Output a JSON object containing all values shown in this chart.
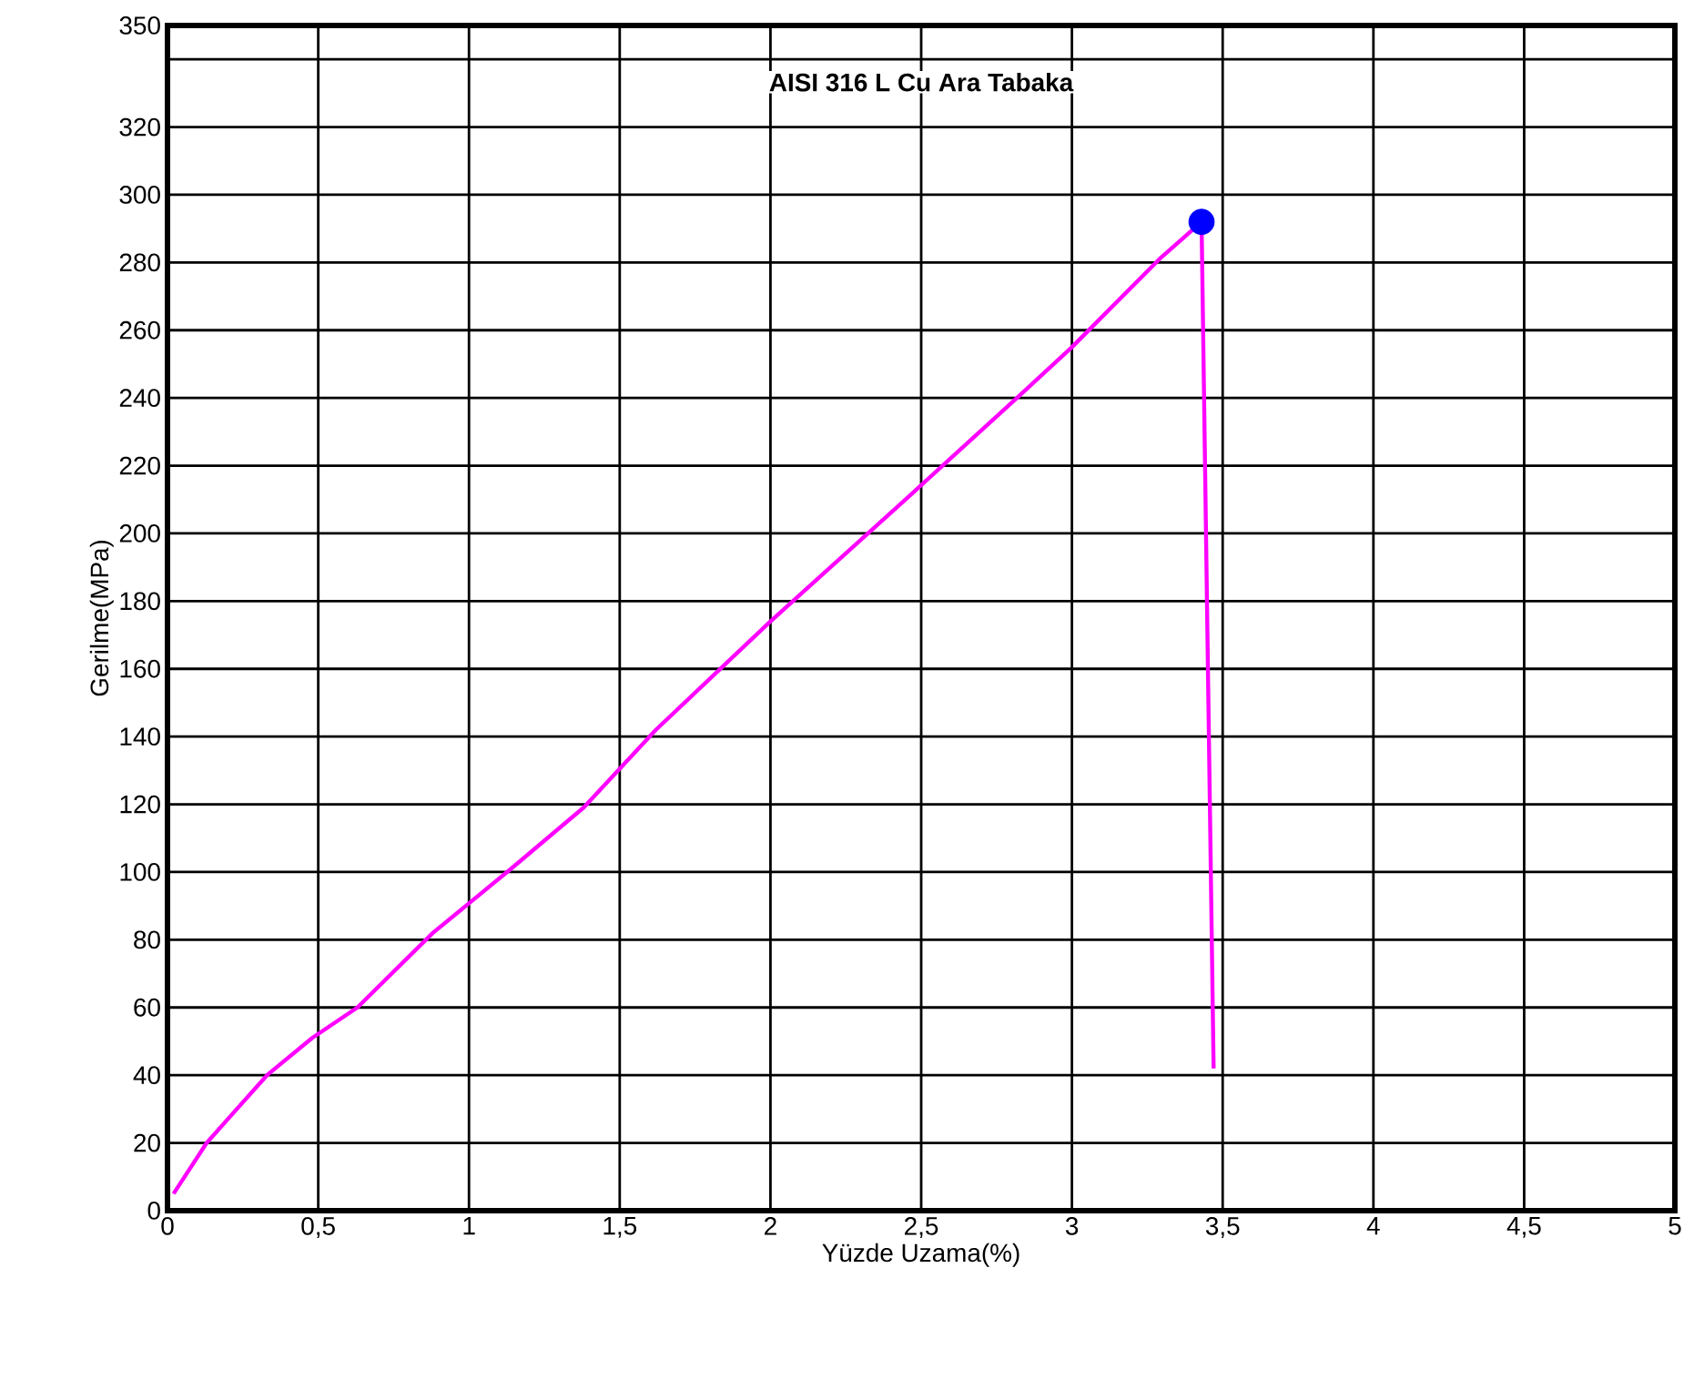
{
  "chart_data": {
    "type": "line",
    "title": "AISI 316 L Cu Ara Tabaka",
    "xlabel": "Yüzde Uzama(%)",
    "ylabel": "Gerilme(MPa)",
    "xlim": [
      0,
      5
    ],
    "ylim": [
      0,
      350
    ],
    "xticks": [
      0,
      {
        "value": 0.5,
        "label": "0,5"
      },
      1,
      {
        "value": 1.5,
        "label": "1,5"
      },
      2,
      {
        "value": 2.5,
        "label": "2,5"
      },
      3,
      {
        "value": 3.5,
        "label": "3,5"
      },
      4,
      {
        "value": 4.5,
        "label": "4,5"
      },
      5
    ],
    "yticks": [
      0,
      20,
      40,
      60,
      80,
      100,
      120,
      140,
      160,
      180,
      200,
      220,
      240,
      260,
      280,
      300,
      320,
      {
        "value": 340,
        "label": null
      },
      350
    ],
    "grid": true,
    "series": [
      {
        "color": "#ff00ff",
        "marker": "none",
        "x": [
          0.02,
          0.13,
          0.33,
          0.48,
          0.63,
          0.88,
          1.14,
          1.38,
          1.62,
          2.0,
          2.46,
          2.83,
          3.0,
          3.29,
          3.43,
          3.47
        ],
        "values": [
          5,
          20,
          40,
          51,
          60,
          82,
          101,
          119,
          142,
          174,
          211,
          241,
          255,
          281,
          292,
          42
        ]
      },
      {
        "type": "scatter",
        "color": "#0000ff",
        "marker": "circle",
        "x": [
          3.43
        ],
        "values": [
          292
        ]
      }
    ]
  }
}
